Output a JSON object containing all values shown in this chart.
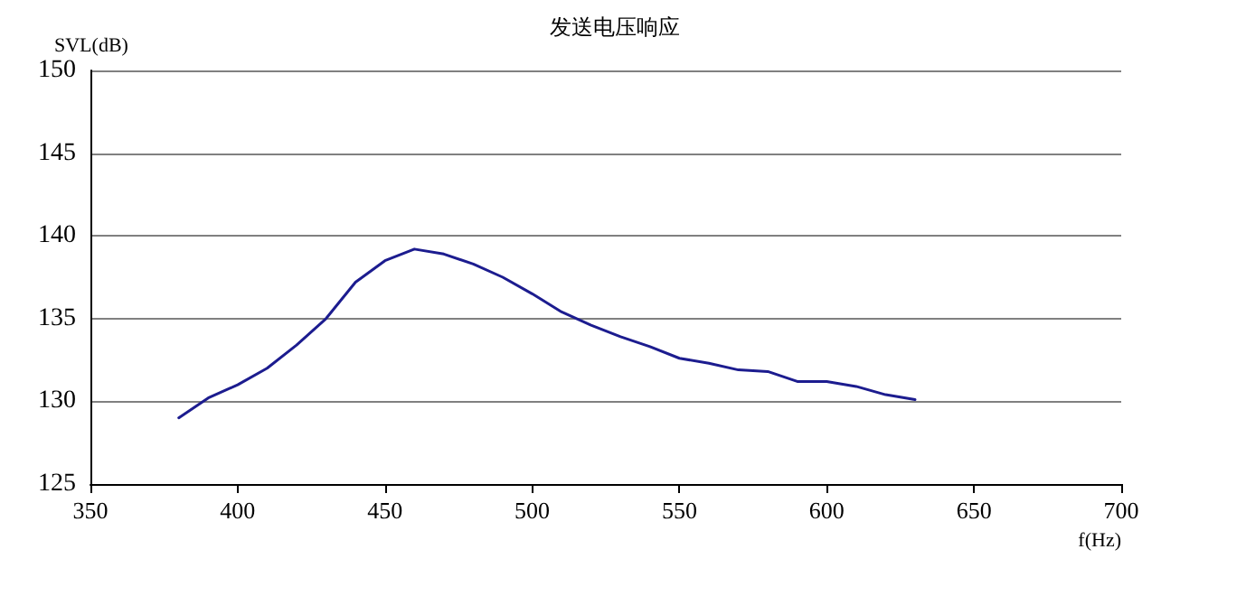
{
  "chart_data": {
    "type": "line",
    "title": "发送电压响应",
    "xlabel": "f(Hz)",
    "ylabel": "SVL(dB)",
    "x": [
      380,
      390,
      400,
      410,
      420,
      430,
      440,
      450,
      460,
      470,
      480,
      490,
      500,
      510,
      520,
      530,
      540,
      550,
      560,
      570,
      580,
      590,
      600,
      610,
      620,
      630
    ],
    "series": [
      {
        "color": "#1c1c8f",
        "values": [
          129.0,
          130.2,
          131.0,
          132.0,
          133.4,
          135.0,
          137.2,
          138.5,
          139.2,
          138.9,
          138.3,
          137.5,
          136.5,
          135.4,
          134.6,
          133.9,
          133.3,
          132.6,
          132.3,
          131.9,
          131.8,
          131.2,
          131.2,
          130.9,
          130.4,
          130.1
        ]
      }
    ],
    "xlim": [
      350,
      700
    ],
    "xticks": [
      350,
      400,
      450,
      500,
      550,
      600,
      650,
      700
    ],
    "ylim": [
      125,
      150
    ],
    "yticks": [
      125,
      130,
      135,
      140,
      145,
      150
    ],
    "grid": "y",
    "marker": "none",
    "line_style": "solid"
  }
}
